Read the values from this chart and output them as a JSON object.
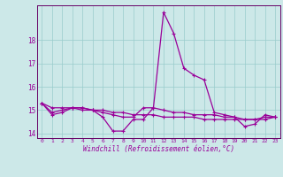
{
  "hours": [
    0,
    1,
    2,
    3,
    4,
    5,
    6,
    7,
    8,
    9,
    10,
    11,
    12,
    13,
    14,
    15,
    16,
    17,
    18,
    19,
    20,
    21,
    22,
    23
  ],
  "line1": [
    15.3,
    14.8,
    14.9,
    15.1,
    15.1,
    15.0,
    14.7,
    14.1,
    14.1,
    14.6,
    14.6,
    15.1,
    19.2,
    18.3,
    16.8,
    16.5,
    16.3,
    14.9,
    14.8,
    14.7,
    14.3,
    14.4,
    14.8,
    14.7
  ],
  "line2": [
    15.3,
    14.9,
    15.0,
    15.1,
    15.1,
    15.0,
    14.9,
    14.8,
    14.7,
    14.7,
    15.1,
    15.1,
    15.0,
    14.9,
    14.9,
    14.8,
    14.8,
    14.8,
    14.7,
    14.7,
    14.6,
    14.6,
    14.7,
    14.7
  ],
  "line3": [
    15.3,
    15.1,
    15.1,
    15.1,
    15.0,
    15.0,
    15.0,
    14.9,
    14.9,
    14.8,
    14.8,
    14.8,
    14.7,
    14.7,
    14.7,
    14.7,
    14.6,
    14.6,
    14.6,
    14.6,
    14.6,
    14.6,
    14.6,
    14.7
  ],
  "ylim": [
    13.8,
    19.5
  ],
  "yticks": [
    14,
    15,
    16,
    17,
    18
  ],
  "xlabel": "Windchill (Refroidissement éolien,°C)",
  "line_color": "#990099",
  "bg_color": "#cce8e8",
  "grid_color": "#99cccc",
  "xlabel_color": "#990099",
  "tick_color": "#990099",
  "spine_color": "#660066"
}
